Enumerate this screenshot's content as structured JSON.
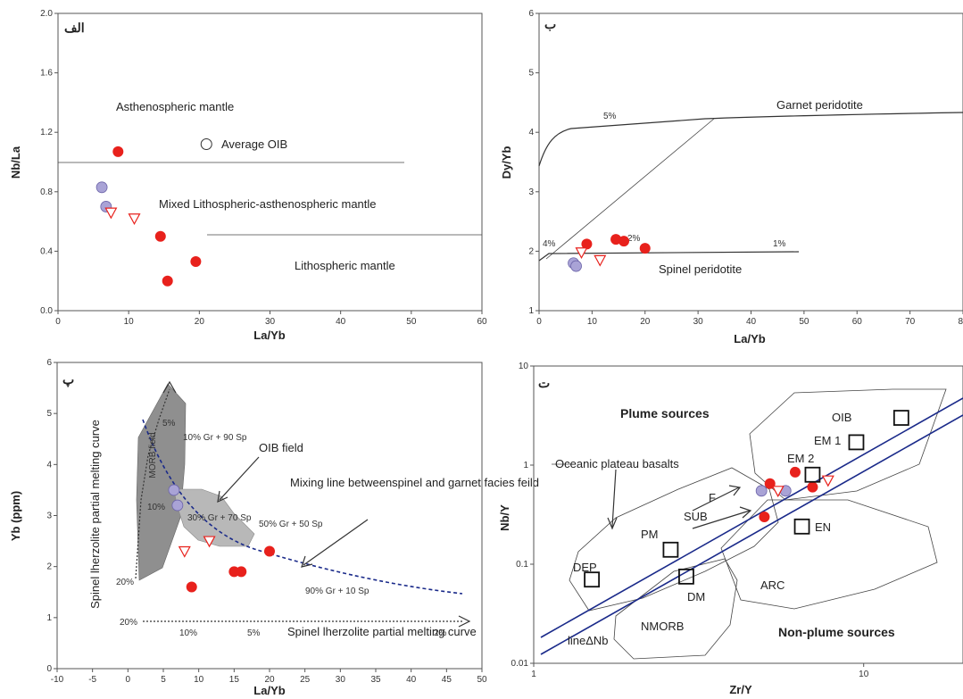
{
  "chart_data": [
    {
      "type": "scatter",
      "panel_label": "الف",
      "xlabel": "La/Yb",
      "ylabel": "Nb/La",
      "xlim": [
        0,
        60
      ],
      "ylim": [
        0,
        2.0
      ],
      "x_ticks": [
        "0",
        "10",
        "20",
        "30",
        "40",
        "50",
        "60"
      ],
      "y_ticks": [
        "0.0",
        "0.4",
        "0.8",
        "1.2",
        "1.6",
        "2.0"
      ],
      "annotations": [
        "Asthenospheric mantle",
        "Average OIB",
        "Mixed Lithospheric-asthenospheric mantle",
        "Lithospheric mantle"
      ],
      "series": [
        {
          "marker": "red-circle",
          "color": "#e8211c",
          "x": [
            8.5,
            14.5,
            19.5,
            15.5
          ],
          "y": [
            1.07,
            0.5,
            0.33,
            0.2
          ]
        },
        {
          "marker": "purple-circle",
          "color": "#a9a3d6",
          "x": [
            6.2,
            6.8
          ],
          "y": [
            0.83,
            0.7
          ]
        },
        {
          "marker": "open-triangle",
          "color": "#e8211c",
          "x": [
            7.5,
            10.8
          ],
          "y": [
            0.66,
            0.62
          ]
        },
        {
          "marker": "open-circle",
          "color": "#333333",
          "x": [
            21
          ],
          "y": [
            1.12
          ]
        }
      ]
    },
    {
      "type": "scatter",
      "panel_label": "ب",
      "xlabel": "La/Yb",
      "ylabel": "Dy/Yb",
      "xlim": [
        0,
        80
      ],
      "ylim": [
        1,
        6
      ],
      "x_ticks": [
        "0",
        "10",
        "20",
        "30",
        "40",
        "50",
        "60",
        "70",
        "80"
      ],
      "y_ticks": [
        "1",
        "2",
        "3",
        "4",
        "5",
        "6"
      ],
      "annotations": [
        "Garnet peridotite",
        "Spinel peridotite",
        "5%",
        "4%",
        "2%",
        "1%"
      ],
      "series": [
        {
          "marker": "red-circle",
          "color": "#e8211c",
          "x": [
            9,
            14.5,
            16,
            20
          ],
          "y": [
            2.12,
            2.2,
            2.17,
            2.05
          ]
        },
        {
          "marker": "purple-circle",
          "color": "#a9a3d6",
          "x": [
            6.5,
            7
          ],
          "y": [
            1.8,
            1.75
          ]
        },
        {
          "marker": "open-triangle",
          "color": "#e8211c",
          "x": [
            8,
            11.5
          ],
          "y": [
            1.98,
            1.85
          ]
        }
      ]
    },
    {
      "type": "scatter",
      "panel_label": "پ",
      "xlabel": "La/Yb",
      "ylabel": "Yb (ppm)",
      "xlim": [
        -10,
        50
      ],
      "ylim": [
        0,
        6
      ],
      "x_ticks": [
        "-10",
        "-5",
        "0",
        "5",
        "10",
        "15",
        "20",
        "25",
        "30",
        "35",
        "40",
        "45",
        "50"
      ],
      "y_ticks": [
        "0",
        "1",
        "2",
        "3",
        "4",
        "5",
        "6"
      ],
      "annotations": [
        "Spinel lherzolite partial melting curve",
        "OIB field",
        "Mixing line betweenspinel and garnet facies feild",
        "MORB field",
        "10% Gr + 90 Sp",
        "30% Gr + 70 Sp",
        "50% Gr + 50 Sp",
        "90% Gr + 10 Sp",
        "Spinel lherzolite partial melting curve",
        "5%",
        "10%",
        "20%",
        "20%",
        "10%",
        "5%",
        "2%"
      ],
      "series": [
        {
          "marker": "red-circle",
          "color": "#e8211c",
          "x": [
            9,
            15,
            16,
            20
          ],
          "y": [
            1.6,
            1.9,
            1.9,
            2.3
          ]
        },
        {
          "marker": "purple-circle",
          "color": "#a9a3d6",
          "x": [
            6.5,
            7
          ],
          "y": [
            3.5,
            3.2
          ]
        },
        {
          "marker": "open-triangle",
          "color": "#e8211c",
          "x": [
            8,
            11.5
          ],
          "y": [
            2.3,
            2.5
          ]
        }
      ]
    },
    {
      "type": "scatter",
      "panel_label": "ت",
      "xlabel": "Zr/Y",
      "ylabel": "Nb/Y",
      "x_scale": "log",
      "y_scale": "log",
      "xlim": [
        1,
        20
      ],
      "ylim": [
        0.01,
        10
      ],
      "x_ticks": [
        "1",
        "10"
      ],
      "y_ticks": [
        "0.01",
        "0.1",
        "1",
        "10"
      ],
      "annotations": [
        "Plume sources",
        "Non-plume sources",
        "Oceanic plateau basalts",
        "OIB",
        "EM 1",
        "EM 2",
        "F",
        "SUB",
        "EN",
        "PM",
        "DM",
        "DEP",
        "ARC",
        "NMORB",
        "lineΔNb"
      ],
      "series": [
        {
          "marker": "red-circle",
          "color": "#e8211c",
          "x": [
            5.2,
            6.2,
            7.0,
            5.0
          ],
          "y": [
            0.65,
            0.85,
            0.6,
            0.3
          ]
        },
        {
          "marker": "purple-circle",
          "color": "#a9a3d6",
          "x": [
            4.9,
            5.8
          ],
          "y": [
            0.55,
            0.55
          ]
        },
        {
          "marker": "open-triangle",
          "color": "#e8211c",
          "x": [
            5.5,
            7.8
          ],
          "y": [
            0.55,
            0.7
          ]
        },
        {
          "marker": "open-square",
          "color": "#111111",
          "x": [
            1.5,
            2.6,
            2.9,
            7.0,
            9.5,
            13,
            6.5
          ],
          "y": [
            0.07,
            0.14,
            0.075,
            0.8,
            1.7,
            3.0,
            0.24
          ]
        }
      ]
    }
  ]
}
